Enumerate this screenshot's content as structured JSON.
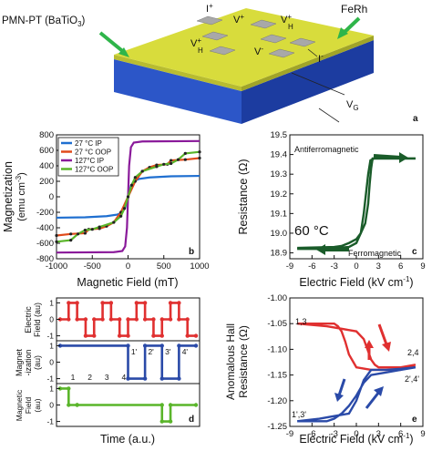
{
  "panel_a": {
    "letter": "a",
    "labels": {
      "substrate": "PMN-PT (BaTiO",
      "substrate_sub": "3",
      "substrate_close": ")",
      "film": "FeRh",
      "i_plus": "I",
      "i_minus": "I",
      "v_plus": "V",
      "v_minus": "V",
      "vh_plus": "V",
      "vh_minus": "V",
      "vh_sub": "H",
      "vg": "V",
      "vg_sub": "G",
      "plus": "+",
      "minus": "-"
    },
    "colors": {
      "film_top": "#d8dc3c",
      "film_side": "#b8bc30",
      "substrate_front": "#2c56c8",
      "substrate_side": "#1c3ca0"
    }
  },
  "chart_data": [
    {
      "panel": "b",
      "type": "line",
      "xlabel": "Magnetic Field (mT)",
      "ylabel": "Magnetization",
      "ylabel_unit": "(emu cm",
      "ylabel_unit_exp": "-3",
      "ylabel_unit_close": ")",
      "xlim": [
        -1000,
        1000
      ],
      "ylim": [
        -800,
        800
      ],
      "xticks": [
        -1000,
        -500,
        0,
        500,
        1000
      ],
      "yticks": [
        -800,
        -600,
        -400,
        -200,
        0,
        200,
        400,
        600,
        800
      ],
      "legend_position": "top-left",
      "series": [
        {
          "name": "27 °C  IP",
          "color": "#1f6fd0",
          "x": [
            -1000,
            -600,
            -300,
            -150,
            -80,
            -40,
            0,
            40,
            80,
            150,
            300,
            600,
            1000
          ],
          "y": [
            -270,
            -265,
            -250,
            -230,
            -200,
            -140,
            0,
            140,
            200,
            230,
            250,
            265,
            270
          ]
        },
        {
          "name": "27 °C  OOP",
          "color": "#e04a1a",
          "x": [
            -1000,
            -800,
            -600,
            -550,
            -400,
            -300,
            -200,
            -100,
            0,
            100,
            200,
            300,
            400,
            550,
            600,
            800,
            1000
          ],
          "y": [
            -500,
            -480,
            -470,
            -420,
            -410,
            -380,
            -330,
            -200,
            0,
            200,
            330,
            380,
            410,
            420,
            470,
            480,
            500
          ]
        },
        {
          "name": "127°C  IP",
          "color": "#8a1a9a",
          "x": [
            -1000,
            -200,
            -80,
            -40,
            -15,
            0,
            15,
            40,
            80,
            200,
            1000
          ],
          "y": [
            -720,
            -715,
            -700,
            -640,
            -400,
            0,
            400,
            640,
            700,
            715,
            720
          ]
        },
        {
          "name": "127°C OOP",
          "color": "#5ab52a",
          "x": [
            -1000,
            -800,
            -700,
            -600,
            -500,
            -400,
            -200,
            -100,
            -50,
            0,
            50,
            100,
            200,
            400,
            500,
            600,
            700,
            800,
            1000
          ],
          "y": [
            -580,
            -560,
            -480,
            -430,
            -420,
            -390,
            -330,
            -250,
            -150,
            0,
            150,
            250,
            330,
            390,
            420,
            430,
            480,
            560,
            580
          ]
        }
      ]
    },
    {
      "panel": "c",
      "type": "line",
      "xlabel": "Electric Field (kV cm",
      "xlabel_exp": "-1",
      "xlabel_close": ")",
      "ylabel": "Resistance (Ω)",
      "xlim": [
        -9,
        9
      ],
      "ylim": [
        18.87,
        19.5
      ],
      "xticks": [
        -9,
        -6,
        -3,
        0,
        3,
        6,
        9
      ],
      "yticks": [
        18.9,
        19.0,
        19.1,
        19.2,
        19.3,
        19.4,
        19.5
      ],
      "ytick_labels": [
        "18.9",
        "19.0",
        "19.1",
        "19.2",
        "19.3",
        "19.4",
        "19.5"
      ],
      "annotations": {
        "afm": "Antiferromagnetic",
        "fm": "Ferromagnetic",
        "temp": "60 °C"
      },
      "series": [
        {
          "name": "up-sweep",
          "color": "#1a5c2a",
          "x": [
            -8,
            -4,
            -1,
            0,
            0.6,
            1.0,
            1.3,
            1.6,
            1.9,
            2.4,
            3,
            8
          ],
          "y": [
            18.92,
            18.92,
            18.93,
            18.95,
            19.0,
            19.1,
            19.2,
            19.3,
            19.37,
            19.38,
            19.38,
            19.38
          ]
        },
        {
          "name": "down-sweep",
          "color": "#1a5c2a",
          "x": [
            8,
            3,
            2.2,
            2.0,
            1.8,
            1.6,
            1.2,
            0.6,
            0,
            -1,
            -2,
            -3,
            -8
          ],
          "y": [
            19.38,
            19.38,
            19.38,
            19.33,
            19.25,
            19.15,
            19.05,
            19.0,
            18.97,
            18.95,
            18.935,
            18.93,
            18.925
          ]
        }
      ]
    },
    {
      "panel": "d",
      "type": "line",
      "xlabel": "Time (a.u.)",
      "sub_panels": [
        {
          "label": "Electric Field (au)",
          "color": "#e03030",
          "yticks": [
            -1,
            0,
            1
          ],
          "x": [
            0,
            1,
            1,
            2,
            2,
            3,
            3,
            4,
            4,
            5,
            5,
            6,
            6,
            7,
            7,
            8,
            8,
            9,
            9,
            10,
            10,
            11,
            11,
            12,
            12,
            13,
            13,
            14,
            14,
            15,
            15,
            16
          ],
          "y": [
            0,
            0,
            1,
            1,
            0,
            0,
            -1,
            -1,
            0,
            0,
            1,
            1,
            0,
            0,
            -1,
            -1,
            0,
            0,
            1,
            1,
            0,
            0,
            -1,
            -1,
            0,
            0,
            1,
            1,
            0,
            0,
            -1,
            -1
          ]
        },
        {
          "label": "Magnet -ization (au)",
          "color": "#2a4aa8",
          "yticks": [
            -1,
            0,
            1
          ],
          "x": [
            0,
            8,
            8,
            10,
            10,
            12,
            12,
            14,
            14,
            16
          ],
          "y": [
            1,
            1,
            -1,
            -1,
            1,
            1,
            -1,
            -1,
            1,
            1
          ],
          "state_labels": [
            "1",
            "2",
            "3",
            "4",
            "1'",
            "2'",
            "3'",
            "4'"
          ]
        },
        {
          "label": "Magnetic Field (au)",
          "color": "#5ab52a",
          "yticks": [
            -1,
            0,
            1
          ],
          "x": [
            0,
            1,
            1,
            2,
            2,
            12,
            12,
            13,
            13,
            16
          ],
          "y": [
            1,
            1,
            0,
            0,
            0,
            0,
            -1,
            -1,
            0,
            0
          ]
        }
      ]
    },
    {
      "panel": "e",
      "type": "line",
      "xlabel": "Electric Field (kV cm",
      "xlabel_exp": "-1",
      "xlabel_close": ")",
      "ylabel": "Anomalous Hall",
      "ylabel2": "Resistance (Ω)",
      "xlim": [
        -9,
        9
      ],
      "ylim": [
        -1.25,
        -1.0
      ],
      "xticks": [
        -9,
        -6,
        -3,
        0,
        3,
        6,
        9
      ],
      "yticks": [
        -1.0,
        -1.05,
        -1.1,
        -1.15,
        -1.2,
        -1.25
      ],
      "ytick_labels": [
        "-1.00",
        "-1.05",
        "-1.10",
        "-1.15",
        "-1.20",
        "-1.25"
      ],
      "state_labels": {
        "s13": "1,3",
        "s24": "2,4",
        "s24p": "2',4'",
        "s13p": "1',3'"
      },
      "series": [
        {
          "name": "red",
          "color": "#e03030",
          "x": [
            -8,
            -4,
            -2,
            0,
            1,
            1.5,
            2,
            2.5,
            3,
            4,
            6,
            8,
            8,
            6,
            4,
            2,
            0,
            -1,
            -1.5,
            -2,
            -2.5,
            -3,
            -4,
            -8
          ],
          "y": [
            -1.05,
            -1.055,
            -1.06,
            -1.065,
            -1.08,
            -1.1,
            -1.12,
            -1.13,
            -1.135,
            -1.135,
            -1.135,
            -1.13,
            -1.13,
            -1.14,
            -1.14,
            -1.14,
            -1.135,
            -1.11,
            -1.085,
            -1.065,
            -1.055,
            -1.05,
            -1.05,
            -1.05
          ]
        },
        {
          "name": "blue",
          "color": "#2a4aa8",
          "x": [
            -8,
            -5,
            -3,
            -1,
            0,
            1,
            2,
            3,
            4,
            6,
            8,
            8,
            6,
            4,
            2,
            1,
            0,
            -1,
            -2,
            -3,
            -4,
            -6,
            -8
          ],
          "y": [
            -1.24,
            -1.235,
            -1.23,
            -1.225,
            -1.2,
            -1.16,
            -1.14,
            -1.14,
            -1.14,
            -1.138,
            -1.135,
            -1.135,
            -1.14,
            -1.145,
            -1.15,
            -1.165,
            -1.19,
            -1.21,
            -1.225,
            -1.235,
            -1.24,
            -1.24,
            -1.24
          ]
        }
      ]
    }
  ]
}
